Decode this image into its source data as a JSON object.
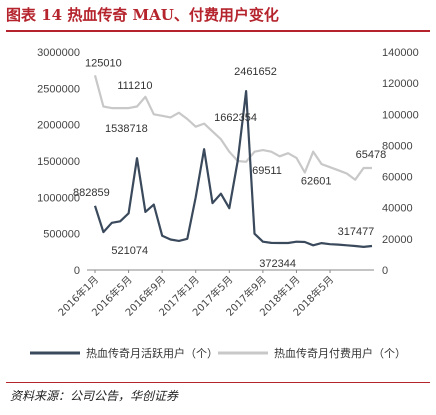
{
  "header": {
    "title": "图表 14   热血传奇 MAU、付费用户变化"
  },
  "footer": {
    "source": "资料来源：公司公告，华创证券"
  },
  "colors": {
    "series_active": "#3a4a5c",
    "series_paying": "#c8c8c8",
    "title_red": "#b5242d"
  },
  "chart_data": {
    "type": "line",
    "title": "",
    "xlabel": "",
    "ylabel": "",
    "x_ticks": [
      "2016年1月",
      "2016年5月",
      "2016年9月",
      "2017年1月",
      "2017年5月",
      "2017年9月",
      "2018年1月",
      "2018年5月"
    ],
    "y_left": {
      "ylim": [
        0,
        3000000
      ],
      "ticks": [
        "0",
        "500000",
        "1000000",
        "1500000",
        "2000000",
        "2500000",
        "3000000"
      ]
    },
    "y_right": {
      "ylim": [
        0,
        140000
      ],
      "ticks": [
        "0",
        "20000",
        "40000",
        "60000",
        "80000",
        "100000",
        "120000",
        "140000"
      ]
    },
    "grid": false,
    "legend": "bottom",
    "series": [
      {
        "name": "热血传奇月活跃用户（个）",
        "axis": "left",
        "values": [
          882859,
          521074,
          650000,
          670000,
          780000,
          1538718,
          800000,
          900000,
          470000,
          420000,
          400000,
          430000,
          1000000,
          1662354,
          920000,
          1050000,
          850000,
          1500000,
          2461652,
          500000,
          390000,
          372344,
          372000,
          372000,
          390000,
          385000,
          340000,
          370000,
          355000,
          350000,
          340000,
          330000,
          317477,
          330000
        ]
      },
      {
        "name": "热血传奇月付费用户（个）",
        "axis": "right",
        "values": [
          125010,
          105000,
          104000,
          104000,
          104000,
          105000,
          111210,
          100000,
          99000,
          98000,
          101000,
          97000,
          92000,
          94000,
          89000,
          84000,
          76000,
          70000,
          69511,
          76000,
          77000,
          76000,
          73000,
          75000,
          72000,
          62601,
          76000,
          68000,
          66000,
          64000,
          62000,
          58000,
          65478,
          65478
        ]
      }
    ],
    "annotations": [
      {
        "text": "882859",
        "series": 0,
        "index": 0
      },
      {
        "text": "521074",
        "series": 0,
        "index": 1
      },
      {
        "text": "1538718",
        "series": 0,
        "index": 5
      },
      {
        "text": "1662354",
        "series": 0,
        "index": 13
      },
      {
        "text": "2461652",
        "series": 0,
        "index": 18
      },
      {
        "text": "372344",
        "series": 0,
        "index": 21
      },
      {
        "text": "317477",
        "series": 0,
        "index": 32
      },
      {
        "text": "125010",
        "series": 1,
        "index": 0
      },
      {
        "text": "111210",
        "series": 1,
        "index": 6
      },
      {
        "text": "69511",
        "series": 1,
        "index": 18
      },
      {
        "text": "62601",
        "series": 1,
        "index": 25
      },
      {
        "text": "65478",
        "series": 1,
        "index": 32
      }
    ]
  }
}
